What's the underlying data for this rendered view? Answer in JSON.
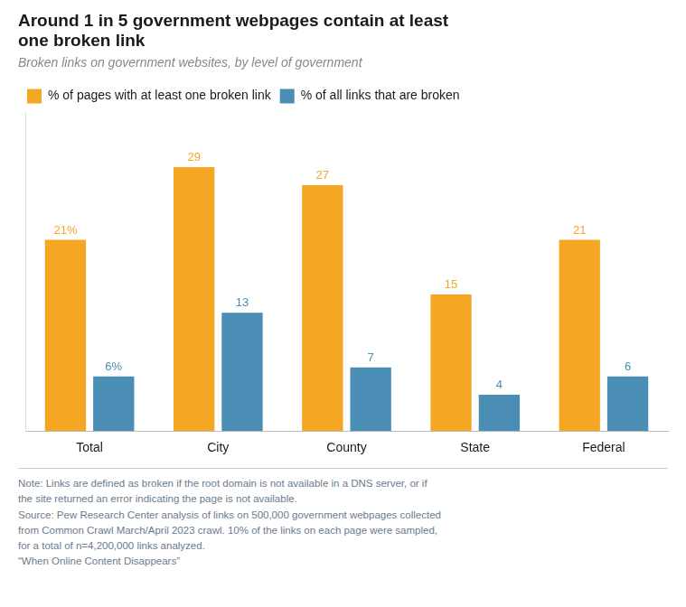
{
  "chart_data": {
    "type": "bar",
    "title": [
      "Around 1 in 5 government webpages contain at least",
      "one broken link"
    ],
    "subtitle": "Broken links on government websites, by level of government",
    "categories": [
      "Total",
      "City",
      "County",
      "State",
      "Federal"
    ],
    "series": [
      {
        "name": "% of pages with at least one broken link",
        "color": "#F5A623",
        "values": [
          21,
          29,
          27,
          15,
          21
        ],
        "value_labels": [
          "21%",
          "29",
          "27",
          "15",
          "21"
        ]
      },
      {
        "name": "% of all links that are broken",
        "color": "#4A8DB5",
        "values": [
          6,
          13,
          7,
          4,
          6
        ],
        "value_labels": [
          "6%",
          "13",
          "7",
          "4",
          "6"
        ]
      }
    ],
    "ylim": [
      0,
      35
    ],
    "grid": false,
    "legend": "top",
    "data_labels": true,
    "tick_labels": "x",
    "note": [
      "Note: Links are defined as broken if the root domain is not available in a DNS server, or if",
      "the site returned an error indicating the page is not available.",
      "Source: Pew Research Center analysis of links on 500,000 government webpages collected",
      "from Common Crawl March/April 2023 crawl. 10% of the links on each page were sampled,",
      "for a total of n=4,200,000 links analyzed.",
      "“When Online Content Disappears”"
    ]
  }
}
